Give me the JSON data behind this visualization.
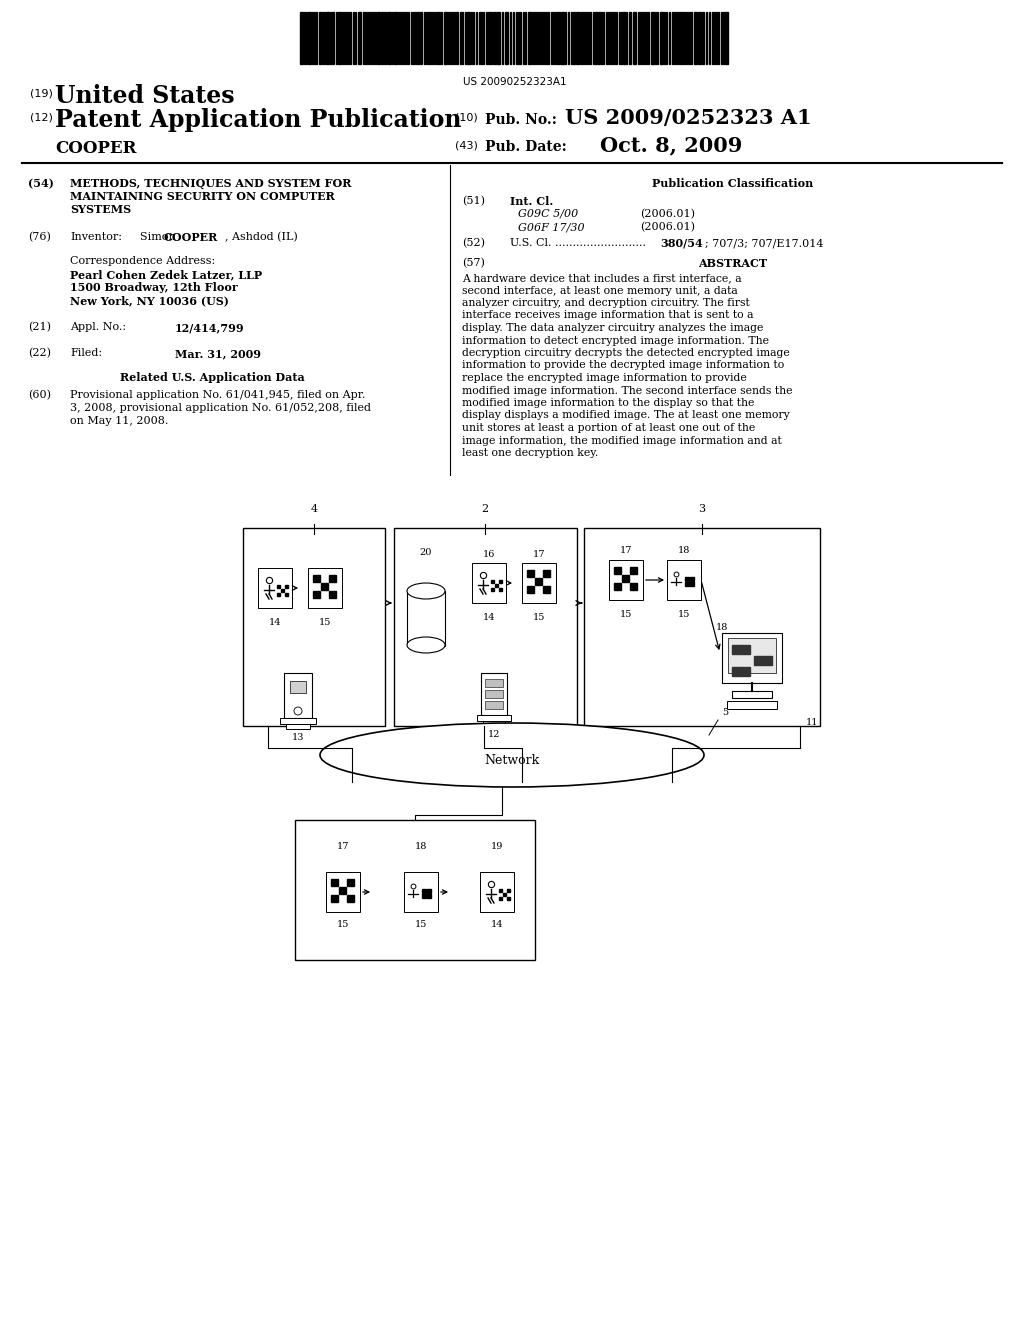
{
  "background_color": "#ffffff",
  "barcode_text": "US 20090252323A1",
  "title19": "(19)",
  "title19_text": "United States",
  "title12": "(12)",
  "title12_text": "Patent Application Publication",
  "inventor_name": "COOPER",
  "pub_no_label": "Pub. No.:",
  "pub_no": "US 2009/0252323 A1",
  "pub_date_label": "Pub. Date:",
  "pub_date": "Oct. 8, 2009",
  "field54_label": "(54)",
  "field54_lines": [
    "METHODS, TECHNIQUES AND SYSTEM FOR",
    "MAINTAINING SECURITY ON COMPUTER",
    "SYSTEMS"
  ],
  "pub_class_label": "Publication Classification",
  "field51_label": "(51)",
  "field51_text": "Int. Cl.",
  "class1": "G09C 5/00",
  "class1_date": "(2006.01)",
  "class2": "G06F 17/30",
  "class2_date": "(2006.01)",
  "field52_label": "(52)",
  "field57_label": "(57)",
  "field57_text": "ABSTRACT",
  "abstract_text": "A hardware device that includes a first interface, a second interface, at least one memory unit, a data analyzer circuitry, and decryption circuitry. The first interface receives image information that is sent to a display. The data analyzer circuitry analyzes the image information to detect encrypted image information. The decryption circuitry decrypts the detected encrypted image information to provide the decrypted image information to replace the encrypted image information to provide modified image information. The second interface sends the modified image information to the display so that the display displays a modified image. The at least one memory unit stores at least a portion of at least one out of the image information, the modified image information and at least one decryption key.",
  "field76_label": "(76)",
  "corr_line0": "Correspondence Address:",
  "corr_line1": "Pearl Cohen Zedek Latzer, LLP",
  "corr_line2": "1500 Broadway, 12th Floor",
  "corr_line3": "New York, NY 10036 (US)",
  "field21_label": "(21)",
  "field22_label": "(22)",
  "related_data_title": "Related U.S. Application Data",
  "field60_label": "(60)",
  "field60_lines": [
    "Provisional application No. 61/041,945, filed on Apr.",
    "3, 2008, provisional application No. 61/052,208, filed",
    "on May 11, 2008."
  ]
}
